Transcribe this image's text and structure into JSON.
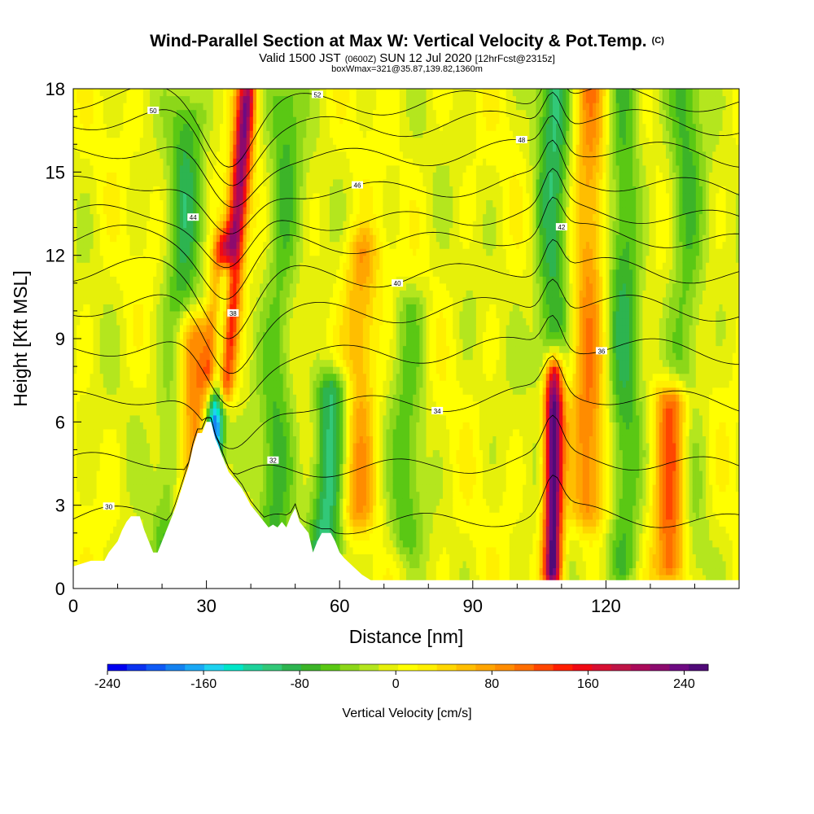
{
  "title": "Wind-Parallel Section at Max W: Vertical Velocity & Pot.Temp.",
  "copyright": "(C)",
  "subtitle_main": "Valid 1500 JST",
  "subtitle_utc": "(0600Z)",
  "subtitle_date": "SUN 12 Jul 2020",
  "subtitle_fcst": "[12hrFcst@2315z]",
  "subtitle2": "boxWmax=321@35.87,139.82,1360m",
  "chart_data": {
    "type": "heatmap",
    "xlabel": "Distance [nm]",
    "ylabel": "Height [Kft MSL]",
    "xlim": [
      0,
      150
    ],
    "ylim": [
      0,
      18
    ],
    "xticks": [
      0,
      30,
      60,
      90,
      120
    ],
    "yticks": [
      0,
      3,
      6,
      9,
      12,
      15,
      18
    ],
    "colorbar": {
      "label": "Vertical Velocity [cm/s]",
      "range": [
        -240,
        260
      ],
      "ticks": [
        -240,
        -160,
        -80,
        0,
        80,
        160,
        240
      ],
      "colors": [
        "#0000f0",
        "#0a32f0",
        "#0f5af5",
        "#1482f0",
        "#1aa8f5",
        "#1ed2f0",
        "#00e6c8",
        "#1ed29b",
        "#32c878",
        "#2db450",
        "#3cb428",
        "#5ac814",
        "#8cd719",
        "#b4e61e",
        "#e6f00a",
        "#ffff00",
        "#fff000",
        "#ffd700",
        "#ffbe00",
        "#ffa500",
        "#ff8c00",
        "#ff6e00",
        "#ff4600",
        "#ff1e00",
        "#f00a14",
        "#d70f32",
        "#be1446",
        "#aa0a5a",
        "#8c0a6e",
        "#6e0a82",
        "#500a78"
      ]
    },
    "terrain_kft": [
      [
        0,
        0.8
      ],
      [
        4,
        1.0
      ],
      [
        7,
        1.0
      ],
      [
        8,
        1.3
      ],
      [
        10,
        1.7
      ],
      [
        11,
        2.1
      ],
      [
        12,
        2.4
      ],
      [
        13,
        2.6
      ],
      [
        15,
        2.6
      ],
      [
        16,
        2.1
      ],
      [
        17,
        1.7
      ],
      [
        18,
        1.3
      ],
      [
        19,
        1.3
      ],
      [
        20,
        1.7
      ],
      [
        21,
        2.1
      ],
      [
        22,
        2.5
      ],
      [
        23,
        2.9
      ],
      [
        24,
        3.4
      ],
      [
        25,
        3.9
      ],
      [
        26,
        4.4
      ],
      [
        27,
        5.1
      ],
      [
        28,
        5.6
      ],
      [
        29,
        5.6
      ],
      [
        30,
        6.0
      ],
      [
        31,
        6.0
      ],
      [
        32,
        5.4
      ],
      [
        33,
        5.0
      ],
      [
        34,
        4.6
      ],
      [
        35,
        4.2
      ],
      [
        36,
        4.0
      ],
      [
        37,
        3.8
      ],
      [
        38,
        3.6
      ],
      [
        39,
        3.3
      ],
      [
        40,
        3.0
      ],
      [
        41,
        2.8
      ],
      [
        42,
        2.6
      ],
      [
        43,
        2.4
      ],
      [
        44,
        2.2
      ],
      [
        45,
        2.3
      ],
      [
        46,
        2.2
      ],
      [
        47,
        2.4
      ],
      [
        48,
        2.2
      ],
      [
        49,
        2.6
      ],
      [
        50,
        2.9
      ],
      [
        51,
        2.4
      ],
      [
        52,
        2.2
      ],
      [
        53,
        2.0
      ],
      [
        54,
        1.3
      ],
      [
        55,
        1.7
      ],
      [
        56,
        2.0
      ],
      [
        58,
        2.0
      ],
      [
        59,
        1.7
      ],
      [
        60,
        1.3
      ],
      [
        61,
        1.1
      ],
      [
        63,
        0.8
      ],
      [
        65,
        0.5
      ],
      [
        67,
        0.3
      ],
      [
        150,
        0.3
      ]
    ],
    "w_features": [
      {
        "x": 34,
        "z": [
          7.5,
          17.5
        ],
        "w": 220,
        "tilt": 0.5
      },
      {
        "x": 31,
        "z": [
          4.0,
          11.0
        ],
        "w": -230,
        "tilt": 0.45
      },
      {
        "x": 31.5,
        "z": [
          8.0,
          12.0
        ],
        "w": 180,
        "tilt": 0.5
      },
      {
        "x": 108,
        "z": [
          0.8,
          7.5
        ],
        "w": 260,
        "tilt": 0.05
      },
      {
        "x": 135,
        "z": [
          1.0,
          6.5
        ],
        "w": 150,
        "tilt": 0
      },
      {
        "x": 57,
        "z": [
          1.5,
          7.0
        ],
        "w": -110,
        "tilt": 0.25
      },
      {
        "x": 26,
        "z": [
          3.0,
          9.0
        ],
        "w": 110,
        "tilt": 0.2
      },
      {
        "x": 22,
        "z": [
          1.5,
          17.0
        ],
        "w": -70,
        "tilt": 0.25
      },
      {
        "x": 45,
        "z": [
          2.5,
          17.5
        ],
        "w": -60,
        "tilt": 0.2
      },
      {
        "x": 108,
        "z": [
          8,
          18
        ],
        "w": -90,
        "tilt": 0.02
      },
      {
        "x": 116,
        "z": [
          3,
          18
        ],
        "w": 90,
        "tilt": 0.02
      },
      {
        "x": 124,
        "z": [
          1,
          18
        ],
        "w": -70,
        "tilt": 0
      },
      {
        "x": 75,
        "z": [
          2,
          10
        ],
        "w": -50,
        "tilt": 0.1
      },
      {
        "x": 64,
        "z": [
          3,
          12
        ],
        "w": 80,
        "tilt": 0.1
      },
      {
        "x": 138,
        "z": [
          1,
          18
        ],
        "w": -60,
        "tilt": 0
      }
    ],
    "theta_contours": [
      {
        "value": 30,
        "z0": 2.5,
        "label": "30"
      },
      {
        "value": 32,
        "z0": 4.5,
        "label": "32"
      },
      {
        "value": 34,
        "z0": 6.8,
        "label": "34"
      },
      {
        "value": 36,
        "z0": 8.6,
        "label": "36"
      },
      {
        "value": 38,
        "z0": 10.1,
        "label": "38"
      },
      {
        "value": 40,
        "z0": 11.4,
        "label": "40"
      },
      {
        "value": 42,
        "z0": 12.6,
        "label": "42"
      },
      {
        "value": 44,
        "z0": 13.4,
        "label": "44"
      },
      {
        "value": 46,
        "z0": 14.5,
        "label": "46"
      },
      {
        "value": 48,
        "z0": 15.7,
        "label": "48"
      },
      {
        "value": 50,
        "z0": 16.8,
        "label": "50"
      },
      {
        "value": 52,
        "z0": 17.6,
        "label": "52"
      }
    ]
  }
}
